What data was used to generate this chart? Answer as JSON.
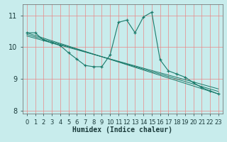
{
  "xlabel": "Humidex (Indice chaleur)",
  "bg_color": "#c8ecec",
  "grid_color_v": "#e88888",
  "grid_color_h": "#e88888",
  "line_color": "#1a7a6a",
  "xlim": [
    -0.5,
    23.5
  ],
  "ylim": [
    7.9,
    11.35
  ],
  "yticks": [
    8,
    9,
    10,
    11
  ],
  "xticks": [
    0,
    1,
    2,
    3,
    4,
    5,
    6,
    7,
    8,
    9,
    10,
    11,
    12,
    13,
    14,
    15,
    16,
    17,
    18,
    19,
    20,
    21,
    22,
    23
  ],
  "series_main_x": [
    0,
    1,
    2,
    3,
    4,
    5,
    6,
    7,
    8,
    9,
    10,
    11,
    12,
    13,
    14,
    15,
    16,
    17,
    18,
    19,
    20,
    21,
    22,
    23
  ],
  "series_main_y": [
    10.45,
    10.45,
    10.22,
    10.13,
    10.05,
    9.82,
    9.62,
    9.42,
    9.38,
    9.38,
    9.75,
    10.78,
    10.85,
    10.45,
    10.95,
    11.1,
    9.6,
    9.25,
    9.15,
    9.05,
    8.88,
    8.72,
    8.62,
    8.52
  ],
  "lines": [
    {
      "x": [
        0,
        23
      ],
      "y": [
        10.45,
        8.52
      ]
    },
    {
      "x": [
        0,
        23
      ],
      "y": [
        10.4,
        8.6
      ]
    },
    {
      "x": [
        0,
        23
      ],
      "y": [
        10.35,
        8.68
      ]
    }
  ],
  "xlabel_fontsize": 7,
  "tick_fontsize": 6,
  "ytick_fontsize": 7
}
